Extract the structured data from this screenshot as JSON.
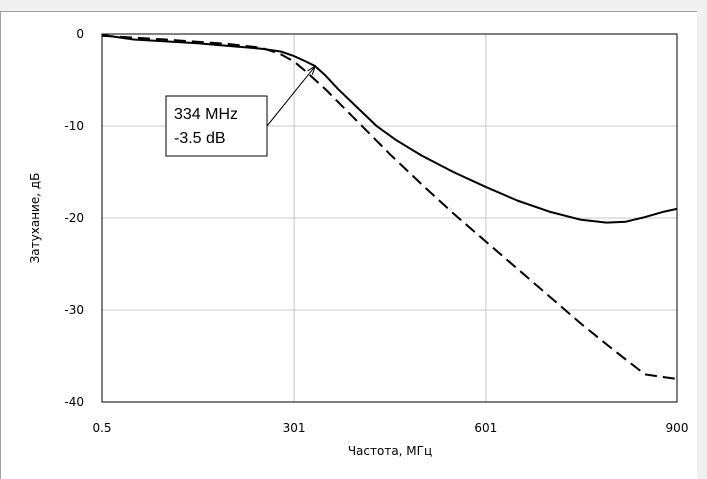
{
  "chart_data": {
    "type": "line",
    "xlabel": "Частота, МГц",
    "ylabel": "Затухание, дБ",
    "xlim": [
      0.5,
      900
    ],
    "ylim": [
      -40,
      0
    ],
    "x_ticks": [
      {
        "value": 0.5,
        "label": "0.5"
      },
      {
        "value": 301,
        "label": "301"
      },
      {
        "value": 601,
        "label": "601"
      },
      {
        "value": 900,
        "label": "900"
      }
    ],
    "y_ticks": [
      {
        "value": 0,
        "label": "0"
      },
      {
        "value": -10,
        "label": "-10"
      },
      {
        "value": -20,
        "label": "-20"
      },
      {
        "value": -30,
        "label": "-30"
      },
      {
        "value": -40,
        "label": "-40"
      }
    ],
    "grid": true,
    "series": [
      {
        "style": "solid",
        "color": "#000000",
        "points": [
          [
            0.5,
            -0.1
          ],
          [
            50,
            -0.6
          ],
          [
            100,
            -0.8
          ],
          [
            150,
            -1.0
          ],
          [
            200,
            -1.3
          ],
          [
            250,
            -1.6
          ],
          [
            280,
            -1.9
          ],
          [
            301,
            -2.4
          ],
          [
            320,
            -3.0
          ],
          [
            334,
            -3.5
          ],
          [
            350,
            -4.5
          ],
          [
            370,
            -6.0
          ],
          [
            400,
            -8.0
          ],
          [
            430,
            -10.0
          ],
          [
            460,
            -11.5
          ],
          [
            500,
            -13.2
          ],
          [
            550,
            -15.0
          ],
          [
            600,
            -16.6
          ],
          [
            650,
            -18.1
          ],
          [
            700,
            -19.3
          ],
          [
            750,
            -20.2
          ],
          [
            790,
            -20.5
          ],
          [
            820,
            -20.4
          ],
          [
            850,
            -19.9
          ],
          [
            880,
            -19.3
          ],
          [
            900,
            -19.0
          ]
        ]
      },
      {
        "style": "dashed",
        "color": "#000000",
        "points": [
          [
            0.5,
            -0.2
          ],
          [
            100,
            -0.6
          ],
          [
            200,
            -1.1
          ],
          [
            250,
            -1.5
          ],
          [
            280,
            -2.2
          ],
          [
            301,
            -3.0
          ],
          [
            320,
            -4.1
          ],
          [
            350,
            -6.0
          ],
          [
            400,
            -9.5
          ],
          [
            450,
            -13.0
          ],
          [
            500,
            -16.3
          ],
          [
            550,
            -19.5
          ],
          [
            600,
            -22.5
          ],
          [
            650,
            -25.5
          ],
          [
            700,
            -28.5
          ],
          [
            750,
            -31.5
          ],
          [
            800,
            -34.3
          ],
          [
            850,
            -37.0
          ],
          [
            900,
            -37.5
          ]
        ]
      }
    ],
    "annotation": {
      "lines": [
        "334 MHz",
        "-3.5 dB"
      ],
      "x": 334,
      "y": -3.5
    }
  }
}
